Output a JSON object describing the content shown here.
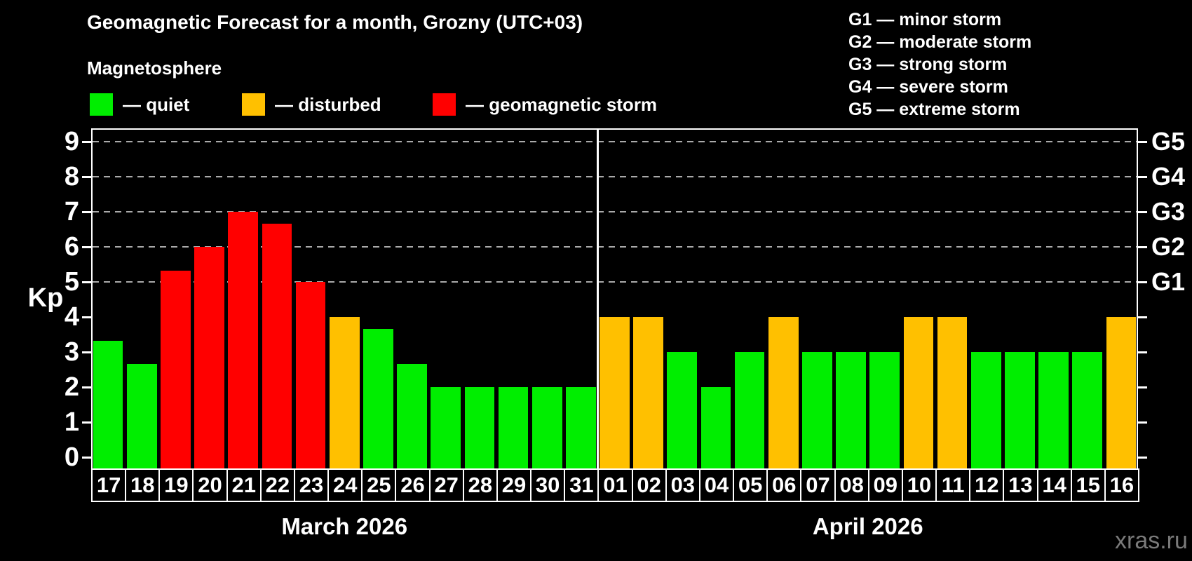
{
  "colors": {
    "background": "#000000",
    "frame": "#ffffff",
    "grid": "#aaaaaa",
    "text": "#ffffff",
    "watermark": "#7a7a7a",
    "quiet": "#00ee00",
    "disturbed": "#ffc000",
    "storm": "#ff0000"
  },
  "header": {
    "title": "Geomagnetic Forecast for a month, Grozny (UTC+03)",
    "subtitle": "Magnetosphere"
  },
  "legend": [
    {
      "key": "quiet",
      "label": "— quiet"
    },
    {
      "key": "disturbed",
      "label": "— disturbed"
    },
    {
      "key": "storm",
      "label": "— geomagnetic storm"
    }
  ],
  "g_legend": [
    "G1 — minor storm",
    "G2 — moderate storm",
    "G3 — strong storm",
    "G4 — severe storm",
    "G5 — extreme storm"
  ],
  "watermark": "xras.ru",
  "chart_data": {
    "type": "bar",
    "title": "Geomagnetic Forecast for a month, Grozny (UTC+03)",
    "ylabel": "Kp",
    "ylim": [
      0,
      9
    ],
    "y_ticks": [
      0,
      1,
      2,
      3,
      4,
      5,
      6,
      7,
      8,
      9
    ],
    "gridlines_kp": [
      5,
      6,
      7,
      8,
      9
    ],
    "right_axis_labels": [
      {
        "label": "G1",
        "kp": 5
      },
      {
        "label": "G2",
        "kp": 6
      },
      {
        "label": "G3",
        "kp": 7
      },
      {
        "label": "G4",
        "kp": 8
      },
      {
        "label": "G5",
        "kp": 9
      }
    ],
    "legend_position": "top-left",
    "grid": true,
    "months": [
      {
        "label": "March 2026",
        "days": [
          {
            "day": "17",
            "kp": 3.33,
            "status": "quiet"
          },
          {
            "day": "18",
            "kp": 2.67,
            "status": "quiet"
          },
          {
            "day": "19",
            "kp": 5.33,
            "status": "storm"
          },
          {
            "day": "20",
            "kp": 6.0,
            "status": "storm"
          },
          {
            "day": "21",
            "kp": 7.0,
            "status": "storm"
          },
          {
            "day": "22",
            "kp": 6.67,
            "status": "storm"
          },
          {
            "day": "23",
            "kp": 5.0,
            "status": "storm"
          },
          {
            "day": "24",
            "kp": 4.0,
            "status": "disturbed"
          },
          {
            "day": "25",
            "kp": 3.67,
            "status": "quiet"
          },
          {
            "day": "26",
            "kp": 2.67,
            "status": "quiet"
          },
          {
            "day": "27",
            "kp": 2.0,
            "status": "quiet"
          },
          {
            "day": "28",
            "kp": 2.0,
            "status": "quiet"
          },
          {
            "day": "29",
            "kp": 2.0,
            "status": "quiet"
          },
          {
            "day": "30",
            "kp": 2.0,
            "status": "quiet"
          },
          {
            "day": "31",
            "kp": 2.0,
            "status": "quiet"
          }
        ]
      },
      {
        "label": "April 2026",
        "days": [
          {
            "day": "01",
            "kp": 4.0,
            "status": "disturbed"
          },
          {
            "day": "02",
            "kp": 4.0,
            "status": "disturbed"
          },
          {
            "day": "03",
            "kp": 3.0,
            "status": "quiet"
          },
          {
            "day": "04",
            "kp": 2.0,
            "status": "quiet"
          },
          {
            "day": "05",
            "kp": 3.0,
            "status": "quiet"
          },
          {
            "day": "06",
            "kp": 4.0,
            "status": "disturbed"
          },
          {
            "day": "07",
            "kp": 3.0,
            "status": "quiet"
          },
          {
            "day": "08",
            "kp": 3.0,
            "status": "quiet"
          },
          {
            "day": "09",
            "kp": 3.0,
            "status": "quiet"
          },
          {
            "day": "10",
            "kp": 4.0,
            "status": "disturbed"
          },
          {
            "day": "11",
            "kp": 4.0,
            "status": "disturbed"
          },
          {
            "day": "12",
            "kp": 3.0,
            "status": "quiet"
          },
          {
            "day": "13",
            "kp": 3.0,
            "status": "quiet"
          },
          {
            "day": "14",
            "kp": 3.0,
            "status": "quiet"
          },
          {
            "day": "15",
            "kp": 3.0,
            "status": "quiet"
          },
          {
            "day": "16",
            "kp": 4.0,
            "status": "disturbed"
          }
        ]
      }
    ]
  }
}
